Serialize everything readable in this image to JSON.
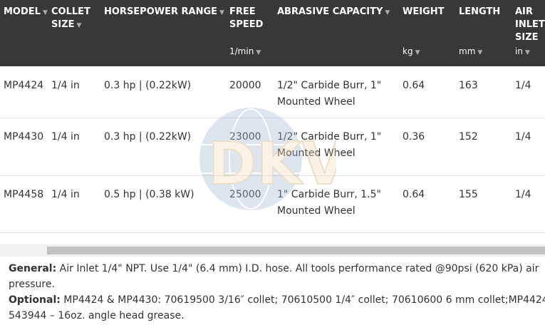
{
  "headers": [
    {
      "label": "MODEL",
      "unit": "",
      "sort": true
    },
    {
      "label": "COLLET SIZE",
      "unit": "",
      "sort": true
    },
    {
      "label": "HORSEPOWER RANGE",
      "unit": "",
      "sort": true
    },
    {
      "label": "FREE SPEED",
      "unit": "1/min",
      "sort": true
    },
    {
      "label": "ABRASIVE CAPACITY",
      "unit": "",
      "sort": true
    },
    {
      "label": "WEIGHT",
      "unit": "kg",
      "sort": true
    },
    {
      "label": "LENGTH",
      "unit": "mm",
      "sort": true
    },
    {
      "label": "AIR INLET SIZE",
      "unit": "in",
      "sort": true
    }
  ],
  "rows": [
    [
      "MP4424",
      "1/4 in",
      "0.3 hp | (0.22kW)",
      "20000",
      "1/2\" Carbide Burr, 1\" Mounted Wheel",
      "0.64",
      "163",
      "1/4"
    ],
    [
      "MP4430",
      "1/4 in",
      "0.3 hp | (0.22kW)",
      "23000",
      "1/2\" Carbide Burr, 1\" Mounted Wheel",
      "0.36",
      "152",
      "1/4"
    ],
    [
      "MP4458",
      "1/4 in",
      "0.5 hp | (0.38 kW)",
      "25000",
      "1\" Carbide Burr, 1.5\" Mounted Wheel",
      "0.64",
      "155",
      "1/4"
    ]
  ],
  "watermark": "DKV",
  "notes": {
    "general_label": "General:",
    "general_text": " Air Inlet 1/4\" NPT. Use 1/4\" (6.4 mm) I.D. hose. All tools performance rated @90psi (620 kPa) air pressure.",
    "optional_label": "Optional:",
    "optional_text": " MP4424 & MP4430: 70619500 3/16″ collet; 70610500 1/4″ collet; 70610600 6 mm collet;MP4424 543944 – 16oz. angle head grease."
  },
  "colors": {
    "header_bg": "#38383a",
    "scroll_thumb": "#c1c1c1"
  }
}
